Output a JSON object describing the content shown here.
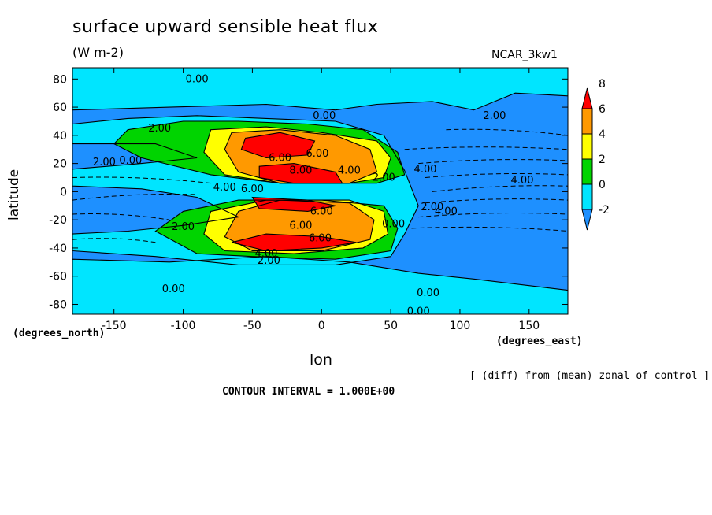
{
  "chart_data": {
    "type": "heatmap",
    "title": "surface upward sensible heat flux",
    "units": "(W m-2)",
    "run_id": "NCAR_3kw1",
    "xlabel": "lon",
    "ylabel": "latitude",
    "x_unit": "(degrees_east)",
    "y_unit": "(degrees_north)",
    "note": "[ (diff) from (mean) zonal of control ]",
    "contour_interval_text": "CONTOUR INTERVAL = 1.000E+00",
    "xlim": [
      -180,
      178
    ],
    "ylim": [
      -87,
      88
    ],
    "x_ticks": [
      -150,
      -100,
      -50,
      0,
      50,
      100,
      150
    ],
    "x_tick_labels": [
      "-150",
      "-100",
      "-50",
      "0",
      "50",
      "100",
      "150"
    ],
    "y_ticks": [
      -80,
      -60,
      -40,
      -20,
      0,
      20,
      40,
      60,
      80
    ],
    "y_tick_labels": [
      "-80",
      "-60",
      "-40",
      "-20",
      "0",
      "20",
      "40",
      "60",
      "80"
    ],
    "colorbar": {
      "levels": [
        -2,
        0,
        2,
        4,
        6,
        8
      ],
      "labels": [
        "-2",
        "0",
        "2",
        "4",
        "6",
        "8"
      ],
      "colors": [
        "#1e90ff",
        "#00e5ff",
        "#00d400",
        "#ffff00",
        "#ff9900",
        "#ff0000"
      ],
      "below_color": "#1e90ff",
      "above_color": "#ff0000"
    },
    "background_color": "#1e90ff",
    "regions": [
      {
        "name": "cyan-ocean",
        "level": 0,
        "color": "#00e5ff",
        "polygon": [
          [
            -180,
            58
          ],
          [
            -110,
            60
          ],
          [
            -40,
            62
          ],
          [
            10,
            58
          ],
          [
            40,
            62
          ],
          [
            80,
            64
          ],
          [
            110,
            58
          ],
          [
            140,
            70
          ],
          [
            178,
            68
          ],
          [
            178,
            88
          ],
          [
            -180,
            88
          ]
        ]
      },
      {
        "name": "cyan-south",
        "level": 0,
        "color": "#00e5ff",
        "polygon": [
          [
            -180,
            -48
          ],
          [
            -110,
            -50
          ],
          [
            -40,
            -46
          ],
          [
            20,
            -50
          ],
          [
            70,
            -58
          ],
          [
            110,
            -62
          ],
          [
            178,
            -70
          ],
          [
            178,
            -87
          ],
          [
            -180,
            -87
          ]
        ]
      },
      {
        "name": "cyan-tropics",
        "level": 0,
        "color": "#00e5ff",
        "polygon": [
          [
            -180,
            48
          ],
          [
            -140,
            52
          ],
          [
            -90,
            54
          ],
          [
            -40,
            52
          ],
          [
            10,
            50
          ],
          [
            45,
            40
          ],
          [
            60,
            15
          ],
          [
            70,
            -10
          ],
          [
            60,
            -30
          ],
          [
            50,
            -46
          ],
          [
            10,
            -52
          ],
          [
            -60,
            -52
          ],
          [
            -120,
            -46
          ],
          [
            -180,
            -42
          ],
          [
            -180,
            -30
          ],
          [
            -140,
            -28
          ],
          [
            -100,
            -24
          ],
          [
            -60,
            -18
          ],
          [
            -90,
            -4
          ],
          [
            -130,
            2
          ],
          [
            -180,
            4
          ],
          [
            -180,
            16
          ],
          [
            -130,
            20
          ],
          [
            -90,
            24
          ],
          [
            -120,
            34
          ],
          [
            -180,
            34
          ]
        ]
      },
      {
        "name": "green-north",
        "level": 2,
        "color": "#00d400",
        "polygon": [
          [
            -140,
            44
          ],
          [
            -100,
            50
          ],
          [
            -60,
            50
          ],
          [
            -10,
            48
          ],
          [
            30,
            44
          ],
          [
            55,
            28
          ],
          [
            60,
            12
          ],
          [
            40,
            6
          ],
          [
            -30,
            6
          ],
          [
            -80,
            12
          ],
          [
            -130,
            24
          ],
          [
            -150,
            34
          ]
        ]
      },
      {
        "name": "green-south",
        "level": 2,
        "color": "#00d400",
        "polygon": [
          [
            -120,
            -28
          ],
          [
            -90,
            -44
          ],
          [
            -50,
            -46
          ],
          [
            10,
            -48
          ],
          [
            50,
            -42
          ],
          [
            55,
            -26
          ],
          [
            45,
            -10
          ],
          [
            0,
            -6
          ],
          [
            -60,
            -6
          ],
          [
            -100,
            -14
          ]
        ]
      },
      {
        "name": "yellow-north",
        "level": 4,
        "color": "#ffff00",
        "polygon": [
          [
            -80,
            44
          ],
          [
            -40,
            46
          ],
          [
            0,
            42
          ],
          [
            40,
            36
          ],
          [
            50,
            24
          ],
          [
            45,
            10
          ],
          [
            20,
            6
          ],
          [
            -30,
            6
          ],
          [
            -70,
            12
          ],
          [
            -85,
            28
          ]
        ]
      },
      {
        "name": "yellow-south",
        "level": 4,
        "color": "#ffff00",
        "polygon": [
          [
            -85,
            -30
          ],
          [
            -70,
            -42
          ],
          [
            -20,
            -44
          ],
          [
            30,
            -40
          ],
          [
            48,
            -30
          ],
          [
            45,
            -14
          ],
          [
            20,
            -6
          ],
          [
            -40,
            -6
          ],
          [
            -80,
            -14
          ]
        ]
      },
      {
        "name": "orange-north",
        "level": 6,
        "color": "#ff9900",
        "polygon": [
          [
            -65,
            42
          ],
          [
            -30,
            44
          ],
          [
            10,
            40
          ],
          [
            35,
            30
          ],
          [
            40,
            14
          ],
          [
            20,
            6
          ],
          [
            -30,
            6
          ],
          [
            -60,
            14
          ],
          [
            -70,
            30
          ]
        ]
      },
      {
        "name": "orange-south",
        "level": 6,
        "color": "#ff9900",
        "polygon": [
          [
            -70,
            -32
          ],
          [
            -50,
            -42
          ],
          [
            0,
            -42
          ],
          [
            35,
            -34
          ],
          [
            38,
            -20
          ],
          [
            20,
            -8
          ],
          [
            -30,
            -6
          ],
          [
            -60,
            -14
          ]
        ]
      },
      {
        "name": "red-north",
        "level": 8,
        "color": "#ff0000",
        "polygon": [
          [
            -55,
            38
          ],
          [
            -30,
            42
          ],
          [
            -5,
            36
          ],
          [
            -10,
            26
          ],
          [
            -40,
            24
          ],
          [
            -58,
            30
          ]
        ]
      },
      {
        "name": "red-equator-n",
        "level": 8,
        "color": "#ff0000",
        "polygon": [
          [
            -45,
            18
          ],
          [
            -20,
            20
          ],
          [
            10,
            14
          ],
          [
            15,
            6
          ],
          [
            -20,
            6
          ],
          [
            -45,
            10
          ]
        ]
      },
      {
        "name": "red-equator-s",
        "level": 8,
        "color": "#ff0000",
        "polygon": [
          [
            -50,
            -4
          ],
          [
            -10,
            -6
          ],
          [
            10,
            -10
          ],
          [
            -10,
            -14
          ],
          [
            -45,
            -12
          ]
        ]
      },
      {
        "name": "red-south",
        "level": 8,
        "color": "#ff0000",
        "polygon": [
          [
            -65,
            -36
          ],
          [
            -40,
            -42
          ],
          [
            0,
            -40
          ],
          [
            25,
            -36
          ],
          [
            0,
            -32
          ],
          [
            -40,
            -30
          ]
        ]
      }
    ],
    "contour_labels": [
      {
        "text": "0.00",
        "lon": -90,
        "lat": 80
      },
      {
        "text": "0.00",
        "lon": 2,
        "lat": 54
      },
      {
        "text": "2.00",
        "lon": -117,
        "lat": 45
      },
      {
        "text": "2.00",
        "lon": 125,
        "lat": 54
      },
      {
        "text": "2.00",
        "lon": -157,
        "lat": 21
      },
      {
        "text": "0.00",
        "lon": -138,
        "lat": 22
      },
      {
        "text": "6.00",
        "lon": -30,
        "lat": 24
      },
      {
        "text": "6.00",
        "lon": -3,
        "lat": 27
      },
      {
        "text": "8.00",
        "lon": -15,
        "lat": 15
      },
      {
        "text": "4.00",
        "lon": 20,
        "lat": 15
      },
      {
        "text": "2.00",
        "lon": 45,
        "lat": 10
      },
      {
        "text": "4.00",
        "lon": 75,
        "lat": 16
      },
      {
        "text": "4.00",
        "lon": 145,
        "lat": 8
      },
      {
        "text": "4.00",
        "lon": -70,
        "lat": 3
      },
      {
        "text": "6.00",
        "lon": -50,
        "lat": 2
      },
      {
        "text": "2.00",
        "lon": 80,
        "lat": -11
      },
      {
        "text": "4.00",
        "lon": 90,
        "lat": -14
      },
      {
        "text": "6.00",
        "lon": 0,
        "lat": -14
      },
      {
        "text": "0.00",
        "lon": 52,
        "lat": -23
      },
      {
        "text": "2.00",
        "lon": -100,
        "lat": -25
      },
      {
        "text": "6.00",
        "lon": -15,
        "lat": -24
      },
      {
        "text": "6.00",
        "lon": -1,
        "lat": -33
      },
      {
        "text": "4.00",
        "lon": -40,
        "lat": -44
      },
      {
        "text": "2.00",
        "lon": -38,
        "lat": -49
      },
      {
        "text": "0.00",
        "lon": -107,
        "lat": -69
      },
      {
        "text": "0.00",
        "lon": 77,
        "lat": -72
      },
      {
        "text": "0.00",
        "lon": 70,
        "lat": -85
      }
    ]
  }
}
